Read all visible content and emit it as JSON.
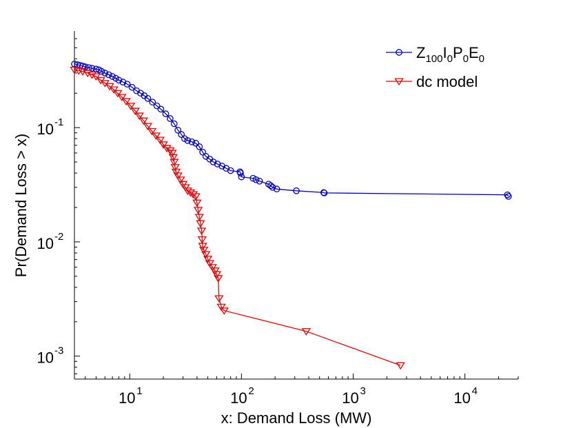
{
  "chart_data": {
    "type": "line",
    "title": "",
    "xlabel": "x: Demand Loss (MW)",
    "ylabel": "Pr(Demand Loss > x)",
    "xscale": "log",
    "yscale": "log",
    "xlim": [
      3.2,
      30000
    ],
    "ylim": [
      0.00063,
      0.7
    ],
    "grid": false,
    "legend_position": "top-right",
    "x_ticks": [
      {
        "value": 10,
        "base": "10",
        "exp": "1"
      },
      {
        "value": 100,
        "base": "10",
        "exp": "2"
      },
      {
        "value": 1000,
        "base": "10",
        "exp": "3"
      },
      {
        "value": 10000,
        "base": "10",
        "exp": "4"
      }
    ],
    "y_ticks": [
      {
        "value": 0.1,
        "base": "10",
        "exp": "-1"
      },
      {
        "value": 0.01,
        "base": "10",
        "exp": "-2"
      },
      {
        "value": 0.001,
        "base": "10",
        "exp": "-3"
      }
    ],
    "series": [
      {
        "name": "Z100I0P0E0",
        "legend_parts": [
          {
            "text": "Z",
            "sub": false
          },
          {
            "text": "100",
            "sub": true
          },
          {
            "text": "I",
            "sub": false
          },
          {
            "text": "0",
            "sub": true
          },
          {
            "text": "P",
            "sub": false
          },
          {
            "text": "0",
            "sub": true
          },
          {
            "text": "E",
            "sub": false
          },
          {
            "text": "0",
            "sub": true
          }
        ],
        "color": "#0000cc",
        "marker": "circle",
        "x": [
          3.2,
          3.4,
          3.6,
          3.8,
          4.0,
          4.3,
          4.6,
          5.0,
          5.3,
          5.6,
          6.0,
          6.5,
          7.0,
          7.5,
          8.0,
          8.7,
          9.5,
          10.5,
          11.5,
          12.5,
          13.5,
          14.5,
          16,
          17.5,
          19,
          21,
          23,
          25,
          27,
          29,
          31,
          33,
          36,
          39,
          42,
          45,
          48,
          52,
          56,
          61,
          67,
          73,
          80,
          97,
          98,
          100,
          127,
          135,
          145,
          175,
          183,
          190,
          207,
          310,
          545,
          550,
          24000,
          24500
        ],
        "y": [
          0.36,
          0.355,
          0.35,
          0.345,
          0.34,
          0.335,
          0.33,
          0.325,
          0.32,
          0.31,
          0.3,
          0.29,
          0.28,
          0.27,
          0.26,
          0.25,
          0.24,
          0.225,
          0.21,
          0.2,
          0.19,
          0.18,
          0.167,
          0.155,
          0.145,
          0.132,
          0.12,
          0.108,
          0.095,
          0.087,
          0.08,
          0.077,
          0.075,
          0.073,
          0.068,
          0.061,
          0.056,
          0.053,
          0.05,
          0.048,
          0.046,
          0.044,
          0.042,
          0.041,
          0.04,
          0.037,
          0.036,
          0.035,
          0.034,
          0.032,
          0.031,
          0.03,
          0.029,
          0.028,
          0.027,
          0.0268,
          0.0258,
          0.025
        ]
      },
      {
        "name": "dc model",
        "legend_parts": [
          {
            "text": "dc model",
            "sub": false
          }
        ],
        "color": "#ee0000",
        "marker": "triangle-down",
        "x": [
          3.2,
          3.5,
          3.8,
          4.2,
          4.6,
          5.0,
          5.5,
          6.0,
          6.6,
          7.2,
          7.8,
          8.5,
          9.3,
          10.2,
          11.2,
          12.2,
          13.3,
          14.5,
          15.8,
          17.2,
          18.7,
          20,
          21.5,
          23,
          24,
          24.5,
          25,
          25.5,
          26,
          27,
          28.5,
          30,
          31.5,
          33,
          35,
          37,
          39,
          40,
          41,
          42,
          43,
          44,
          44.5,
          45,
          46,
          48,
          50,
          52,
          55,
          58,
          60,
          62,
          63,
          66,
          70,
          380,
          2650
        ],
        "y": [
          0.32,
          0.315,
          0.31,
          0.3,
          0.29,
          0.28,
          0.26,
          0.245,
          0.23,
          0.215,
          0.2,
          0.185,
          0.17,
          0.155,
          0.14,
          0.127,
          0.115,
          0.103,
          0.093,
          0.085,
          0.078,
          0.071,
          0.066,
          0.063,
          0.06,
          0.055,
          0.05,
          0.045,
          0.041,
          0.038,
          0.035,
          0.032,
          0.03,
          0.028,
          0.027,
          0.026,
          0.025,
          0.022,
          0.019,
          0.0165,
          0.0145,
          0.0125,
          0.0105,
          0.0092,
          0.0085,
          0.0078,
          0.0071,
          0.0065,
          0.006,
          0.0056,
          0.0052,
          0.0048,
          0.0032,
          0.0027,
          0.0025,
          0.00165,
          0.00083
        ]
      }
    ]
  }
}
